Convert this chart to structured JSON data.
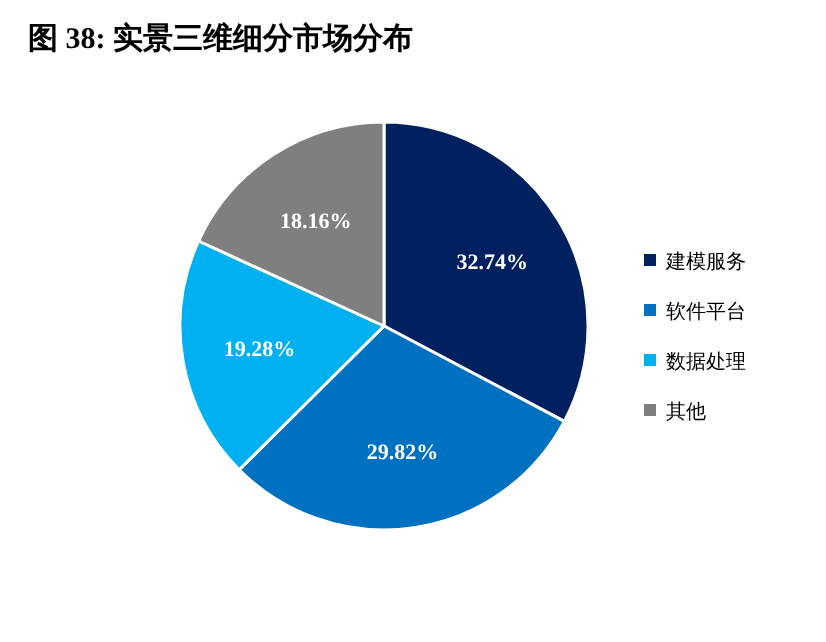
{
  "chart_data": {
    "type": "pie",
    "title": "图  38:  实景三维细分市场分布",
    "categories": [
      "建模服务",
      "软件平台",
      "数据处理",
      "其他"
    ],
    "values": [
      32.74,
      29.82,
      19.28,
      18.16
    ],
    "colors": [
      "#002060",
      "#0070c0",
      "#00b0f0",
      "#7f7f7f"
    ],
    "value_labels": [
      "32.74%",
      "29.82%",
      "19.28%",
      "18.16%"
    ],
    "legend": "right"
  }
}
